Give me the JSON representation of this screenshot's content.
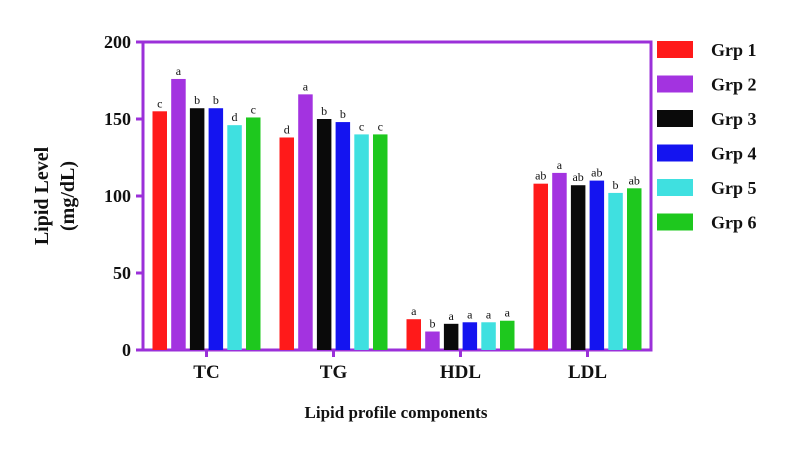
{
  "chart_data": {
    "type": "bar",
    "title": "",
    "xlabel": "Lipid profile components",
    "ylabel_lines": [
      "Lipid Level",
      "(mg/dL)"
    ],
    "ylim": [
      0,
      200
    ],
    "yticks": [
      0,
      50,
      100,
      150,
      200
    ],
    "categories": [
      "TC",
      "TG",
      "HDL",
      "LDL"
    ],
    "grid": false,
    "legend_position": "right",
    "frame_color": "#9b30d9",
    "series": [
      {
        "name": "Grp 1",
        "color": "#ff1a1a",
        "values": [
          155,
          138,
          20,
          108
        ],
        "letters": [
          "c",
          "d",
          "a",
          "ab"
        ]
      },
      {
        "name": "Grp 2",
        "color": "#a333e0",
        "values": [
          176,
          166,
          12,
          115
        ],
        "letters": [
          "a",
          "a",
          "b",
          "a"
        ]
      },
      {
        "name": "Grp 3",
        "color": "#0a0a0a",
        "values": [
          157,
          150,
          17,
          107
        ],
        "letters": [
          "b",
          "b",
          "a",
          "ab"
        ]
      },
      {
        "name": "Grp 4",
        "color": "#1414f0",
        "values": [
          157,
          148,
          18,
          110
        ],
        "letters": [
          "b",
          "b",
          "a",
          "ab"
        ]
      },
      {
        "name": "Grp 5",
        "color": "#3fe0e0",
        "values": [
          146,
          140,
          18,
          102
        ],
        "letters": [
          "d",
          "c",
          "a",
          "b"
        ]
      },
      {
        "name": "Grp 6",
        "color": "#1ec81e",
        "values": [
          151,
          140,
          19,
          105
        ],
        "letters": [
          "c",
          "c",
          "a",
          "ab"
        ]
      }
    ]
  }
}
